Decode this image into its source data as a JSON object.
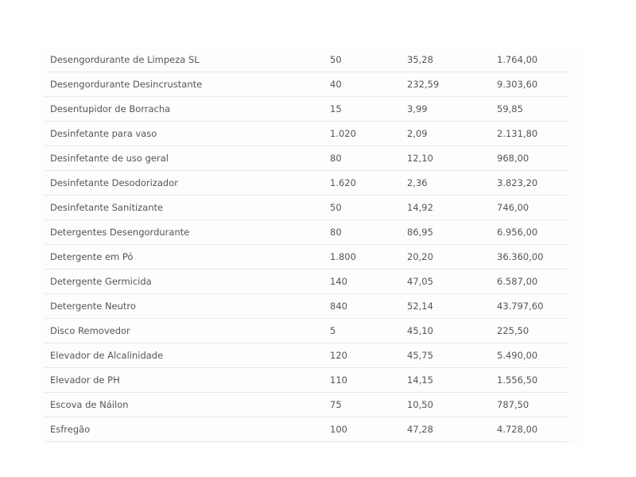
{
  "table": {
    "rows": [
      {
        "name": "Desengordurante de Limpeza SL",
        "qty": "50",
        "unit": "35,28",
        "total": "1.764,00"
      },
      {
        "name": "Desengordurante Desincrustante",
        "qty": "40",
        "unit": "232,59",
        "total": "9.303,60"
      },
      {
        "name": "Desentupidor de Borracha",
        "qty": "15",
        "unit": "3,99",
        "total": "59,85"
      },
      {
        "name": "Desinfetante para vaso",
        "qty": "1.020",
        "unit": "2,09",
        "total": "2.131,80"
      },
      {
        "name": "Desinfetante de uso geral",
        "qty": "80",
        "unit": "12,10",
        "total": "968,00"
      },
      {
        "name": "Desinfetante Desodorizador",
        "qty": "1.620",
        "unit": "2,36",
        "total": "3.823,20"
      },
      {
        "name": "Desinfetante Sanitizante",
        "qty": "50",
        "unit": "14,92",
        "total": "746,00"
      },
      {
        "name": "Detergentes Desengordurante",
        "qty": "80",
        "unit": "86,95",
        "total": "6.956,00"
      },
      {
        "name": "Detergente em Pó",
        "qty": "1.800",
        "unit": "20,20",
        "total": "36.360,00"
      },
      {
        "name": "Detergente Germicida",
        "qty": "140",
        "unit": "47,05",
        "total": "6.587,00"
      },
      {
        "name": "Detergente Neutro",
        "qty": "840",
        "unit": "52,14",
        "total": "43.797,60"
      },
      {
        "name": "Disco Removedor",
        "qty": "5",
        "unit": "45,10",
        "total": "225,50"
      },
      {
        "name": "Elevador de Alcalinidade",
        "qty": "120",
        "unit": "45,75",
        "total": "5.490,00"
      },
      {
        "name": "Elevador de PH",
        "qty": "110",
        "unit": "14,15",
        "total": "1.556,50"
      },
      {
        "name": "Escova de Náilon",
        "qty": "75",
        "unit": "10,50",
        "total": "787,50"
      },
      {
        "name": "Esfregão",
        "qty": "100",
        "unit": "47,28",
        "total": "4.728,00"
      }
    ]
  }
}
